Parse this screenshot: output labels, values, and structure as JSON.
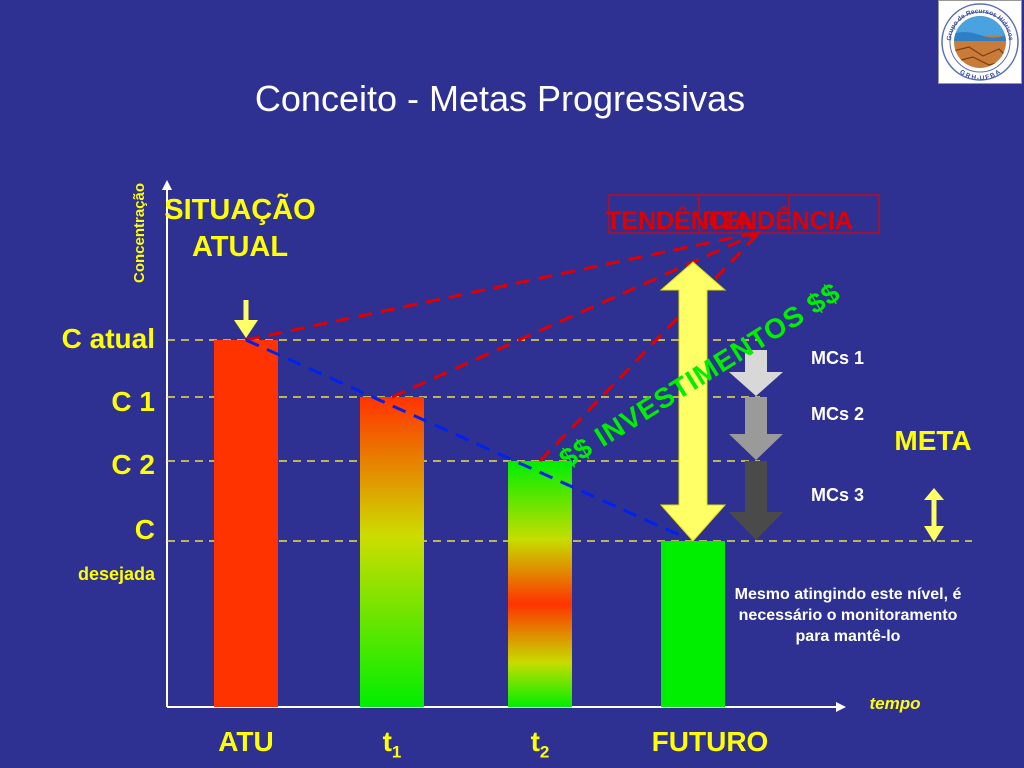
{
  "title": "Conceito - Metas Progressivas",
  "logo": {
    "icon": "grh-ufba-logo-icon",
    "text_top": "Grupo de Recursos Hídricos",
    "text_bottom": "GRH-UFBA"
  },
  "y_axis_label": "Concentração",
  "x_axis_label": "tempo",
  "levels": {
    "c_atual": "C atual",
    "c1": "C 1",
    "c2": "C 2",
    "c_desejada_c": "C",
    "c_desejada_word": "desejada"
  },
  "situacao_atual": "SITUAÇÃO ATUAL",
  "tendencia": "TENDÊNCIA",
  "tendencia_overlap": "TENDÊNCIA",
  "investimentos": "$$ INVESTIMENTOS $$",
  "meta": "META",
  "mcs": [
    "MCs 1",
    "MCs 2",
    "MCs 3"
  ],
  "note": "Mesmo atingindo este nível, é necessário o monitoramento para mantê-lo",
  "x_categories": {
    "atual": "ATU",
    "t1_base": "t",
    "t1_sub": "1",
    "t2_base": "t",
    "t2_sub": "2",
    "futuro": "FUTURO"
  },
  "colors": {
    "background": "#2e3192",
    "accent_yellow": "#ffff00",
    "trend_red": "#e00000",
    "investment_green": "#00ee00",
    "projection_blue": "#0022ee",
    "bar_red": "#ff3300",
    "bar_green": "#00ee00"
  }
}
